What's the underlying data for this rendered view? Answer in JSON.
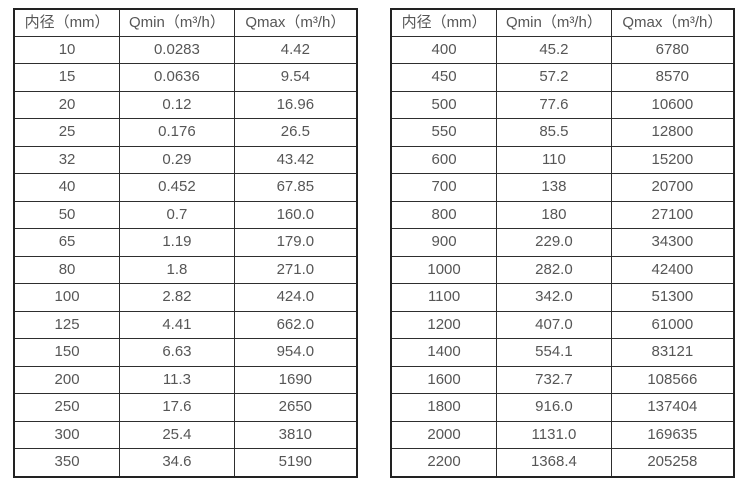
{
  "page": {
    "background": "#ffffff",
    "border_color": "#2e2e2e",
    "text_color": "#565656"
  },
  "tables": [
    {
      "name": "flow-range-table-small-diameters",
      "headers": [
        "内径（mm）",
        "Qmin（m³/h）",
        "Qmax（m³/h）"
      ],
      "rows": [
        [
          "10",
          "0.0283",
          "4.42"
        ],
        [
          "15",
          "0.0636",
          "9.54"
        ],
        [
          "20",
          "0.12",
          "16.96"
        ],
        [
          "25",
          "0.176",
          "26.5"
        ],
        [
          "32",
          "0.29",
          "43.42"
        ],
        [
          "40",
          "0.452",
          "67.85"
        ],
        [
          "50",
          "0.7",
          "160.0"
        ],
        [
          "65",
          "1.19",
          "179.0"
        ],
        [
          "80",
          "1.8",
          "271.0"
        ],
        [
          "100",
          "2.82",
          "424.0"
        ],
        [
          "125",
          "4.41",
          "662.0"
        ],
        [
          "150",
          "6.63",
          "954.0"
        ],
        [
          "200",
          "11.3",
          "1690"
        ],
        [
          "250",
          "17.6",
          "2650"
        ],
        [
          "300",
          "25.4",
          "3810"
        ],
        [
          "350",
          "34.6",
          "5190"
        ]
      ]
    },
    {
      "name": "flow-range-table-large-diameters",
      "headers": [
        "内径（mm）",
        "Qmin（m³/h）",
        "Qmax（m³/h）"
      ],
      "rows": [
        [
          "400",
          "45.2",
          "6780"
        ],
        [
          "450",
          "57.2",
          "8570"
        ],
        [
          "500",
          "77.6",
          "10600"
        ],
        [
          "550",
          "85.5",
          "12800"
        ],
        [
          "600",
          "110",
          "15200"
        ],
        [
          "700",
          "138",
          "20700"
        ],
        [
          "800",
          "180",
          "27100"
        ],
        [
          "900",
          "229.0",
          "34300"
        ],
        [
          "1000",
          "282.0",
          "42400"
        ],
        [
          "1100",
          "342.0",
          "51300"
        ],
        [
          "1200",
          "407.0",
          "61000"
        ],
        [
          "1400",
          "554.1",
          "83121"
        ],
        [
          "1600",
          "732.7",
          "108566"
        ],
        [
          "1800",
          "916.0",
          "137404"
        ],
        [
          "2000",
          "1131.0",
          "169635"
        ],
        [
          "2200",
          "1368.4",
          "205258"
        ]
      ]
    }
  ]
}
